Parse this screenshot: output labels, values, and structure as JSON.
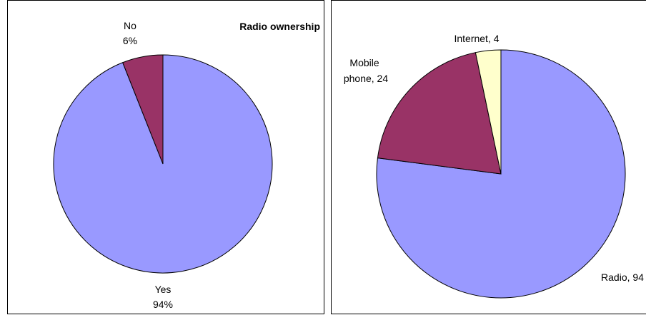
{
  "chart_data": [
    {
      "type": "pie",
      "title": "Radio ownership",
      "slices": [
        {
          "label": "Yes",
          "value": 94,
          "value_text": "94%",
          "color": "#9999ff"
        },
        {
          "label": "No",
          "value": 6,
          "value_text": "6%",
          "color": "#993366"
        }
      ]
    },
    {
      "type": "pie",
      "title": "",
      "slices": [
        {
          "label": "Radio, 94",
          "value": 94,
          "color": "#9999ff"
        },
        {
          "label": "Mobile phone, 24",
          "label_lines": [
            "Mobile",
            "phone, 24"
          ],
          "value": 24,
          "color": "#993366"
        },
        {
          "label": "Internet, 4",
          "value": 4,
          "color": "#ffffcc"
        }
      ]
    }
  ]
}
